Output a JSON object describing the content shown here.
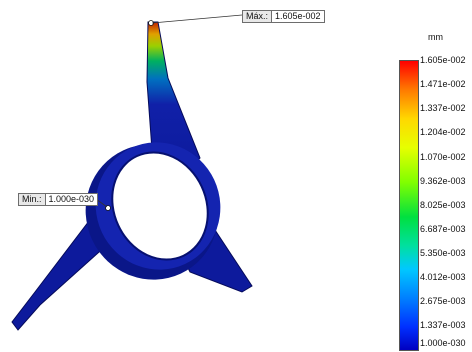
{
  "probes": {
    "max": {
      "tag": "Máx.:",
      "value": "1.605e-002"
    },
    "min": {
      "tag": "Min.:",
      "value": "1.000e-030"
    }
  },
  "legend": {
    "unit": "mm",
    "ticks": [
      "1.605e-002",
      "1.471e-002",
      "1.337e-002",
      "1.204e-002",
      "1.070e-002",
      "9.362e-003",
      "8.025e-003",
      "6.687e-003",
      "5.350e-003",
      "4.012e-003",
      "2.675e-003",
      "1.337e-003",
      "1.000e-030"
    ],
    "colors": {
      "max": "#ff0000",
      "high": "#ffd800",
      "mid": "#00e040",
      "low": "#0080ff",
      "min": "#0000c0"
    }
  },
  "model": {
    "body_color": "#0d1a9c",
    "edge_color": "#050a5a"
  }
}
